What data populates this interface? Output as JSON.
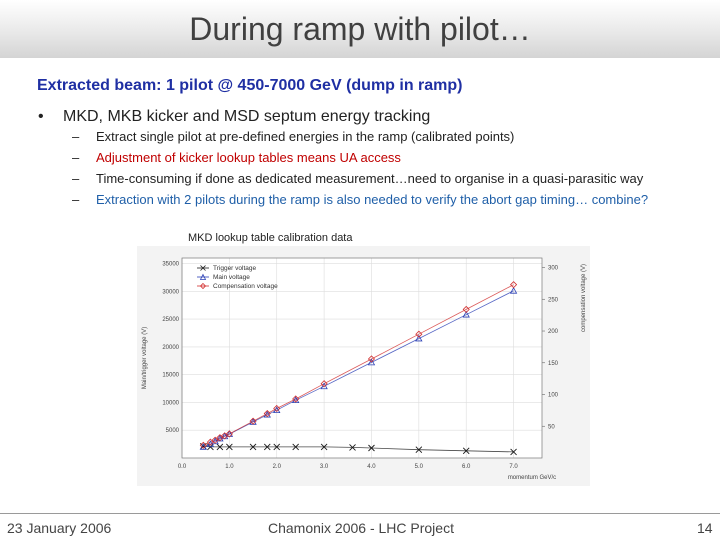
{
  "title": "During ramp with pilot…",
  "subtitle": "Extracted beam: 1 pilot @ 450-7000 GeV (dump in ramp)",
  "bullet": {
    "marker": "•",
    "text": "MKD, MKB kicker and MSD septum energy tracking",
    "dash": "–",
    "subs": [
      "Extract single pilot at pre-defined energies in the ramp (calibrated points)",
      "Adjustment of kicker lookup tables means UA access",
      "Time-consuming if done as dedicated measurement…need to organise in a quasi-parasitic way",
      "Extraction with 2 pilots during the ramp is also needed to verify the abort gap timing… combine?"
    ],
    "colors": [
      "#222222",
      "#c00000",
      "#222222",
      "#1f5fa8"
    ]
  },
  "figure_caption": "MKD lookup table calibration data",
  "chart_data": {
    "type": "scatter",
    "xlabel": "momentum GeV/c",
    "ylabel_left": "Main/trigger voltage (V)",
    "ylabel_right": "compensation voltage (V)",
    "xlim": [
      0,
      7.6
    ],
    "ylim_left": [
      0,
      36000
    ],
    "ylim_right": [
      0,
      315
    ],
    "x_ticks": [
      "0.0",
      "1.0",
      "2.0",
      "3.0",
      "4.0",
      "5.0",
      "6.0",
      "7.0"
    ],
    "y_left_ticks": [
      "5000",
      "10000",
      "15000",
      "20000",
      "25000",
      "30000",
      "35000"
    ],
    "y_right_ticks": [
      "50",
      "100",
      "150",
      "200",
      "250",
      "300"
    ],
    "series": [
      {
        "name": "Trigger voltage",
        "marker": "x",
        "color": "#1a1a1a",
        "axis": "left",
        "x": [
          0.45,
          0.6,
          0.8,
          1.0,
          1.5,
          1.8,
          2.0,
          2.4,
          3.0,
          3.6,
          4.0,
          5.0,
          6.0,
          7.0
        ],
        "y": [
          2100,
          2000,
          2000,
          2000,
          2000,
          2000,
          2000,
          2000,
          2000,
          1900,
          1800,
          1500,
          1300,
          1100
        ]
      },
      {
        "name": "Main voltage",
        "marker": "triangle",
        "color": "#2a3fb5",
        "axis": "left",
        "x": [
          0.45,
          0.6,
          0.7,
          0.8,
          0.9,
          1.0,
          1.5,
          1.8,
          2.0,
          2.4,
          3.0,
          4.0,
          5.0,
          6.0,
          7.0
        ],
        "y": [
          2000,
          2500,
          3000,
          3500,
          3900,
          4300,
          6500,
          7800,
          8600,
          10400,
          12900,
          17200,
          21500,
          25800,
          30100
        ]
      },
      {
        "name": "Compensation voltage",
        "marker": "diamond",
        "color": "#d23030",
        "axis": "right",
        "x": [
          0.45,
          0.6,
          0.7,
          0.8,
          0.9,
          1.0,
          1.5,
          1.8,
          2.0,
          2.4,
          3.0,
          4.0,
          5.0,
          6.0,
          7.0
        ],
        "y": [
          20,
          25,
          28,
          32,
          35,
          38,
          58,
          70,
          78,
          93,
          117,
          156,
          195,
          234,
          273
        ]
      }
    ]
  },
  "footer": {
    "date": "23 January 2006",
    "event": "Chamonix 2006 - LHC Project",
    "page": "14"
  }
}
